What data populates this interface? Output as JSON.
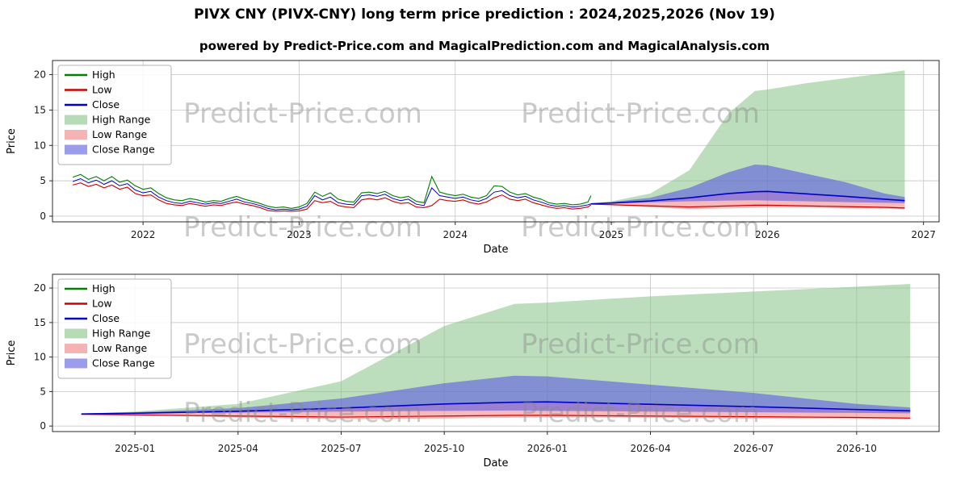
{
  "header": {
    "title": "PIVX CNY (PIVX-CNY) long term price prediction : 2024,2025,2026 (Nov 19)",
    "subtitle": "powered by Predict-Price.com and MagicalPrediction.com and MagicalAnalysis.com"
  },
  "watermark": "Predict-Price.com",
  "colors": {
    "high_line": "#007f00",
    "low_line": "#cc0000",
    "close_line": "#0000c8",
    "high_range": "#87c387",
    "low_range": "#f08080",
    "close_range": "#5a5ae0",
    "grid": "#cccccc",
    "spine": "#2b2b2b",
    "watermark": "#8a8a8a"
  },
  "legend": [
    {
      "label": "High",
      "type": "line",
      "color": "#007f00"
    },
    {
      "label": "Low",
      "type": "line",
      "color": "#cc0000"
    },
    {
      "label": "Close",
      "type": "line",
      "color": "#0000c8"
    },
    {
      "label": "High Range",
      "type": "patch",
      "color": "#87c387"
    },
    {
      "label": "Low Range",
      "type": "patch",
      "color": "#f08080"
    },
    {
      "label": "Close Range",
      "type": "patch",
      "color": "#5a5ae0"
    }
  ],
  "chart_data": [
    {
      "type": "line",
      "title": "PIVX CNY price history and prediction (full range)",
      "xlabel": "Date",
      "ylabel": "Price",
      "xlim": [
        2021.42,
        2027.1
      ],
      "ylim": [
        -0.8,
        22
      ],
      "yticks": [
        0,
        5,
        10,
        15,
        20
      ],
      "xticks": [
        {
          "v": 2022,
          "label": "2022"
        },
        {
          "v": 2023,
          "label": "2023"
        },
        {
          "v": 2024,
          "label": "2024"
        },
        {
          "v": 2025,
          "label": "2025"
        },
        {
          "v": 2026,
          "label": "2026"
        },
        {
          "v": 2027,
          "label": "2027"
        }
      ],
      "historical": {
        "x": [
          2021.55,
          2021.6,
          2021.65,
          2021.7,
          2021.75,
          2021.8,
          2021.85,
          2021.9,
          2021.95,
          2022.0,
          2022.05,
          2022.1,
          2022.15,
          2022.2,
          2022.25,
          2022.3,
          2022.35,
          2022.4,
          2022.45,
          2022.5,
          2022.55,
          2022.6,
          2022.65,
          2022.7,
          2022.75,
          2022.8,
          2022.85,
          2022.9,
          2022.95,
          2023.0,
          2023.05,
          2023.1,
          2023.15,
          2023.2,
          2023.25,
          2023.3,
          2023.35,
          2023.4,
          2023.45,
          2023.5,
          2023.55,
          2023.6,
          2023.65,
          2023.7,
          2023.75,
          2023.8,
          2023.85,
          2023.9,
          2023.95,
          2024.0,
          2024.05,
          2024.1,
          2024.15,
          2024.2,
          2024.25,
          2024.3,
          2024.35,
          2024.4,
          2024.45,
          2024.5,
          2024.55,
          2024.6,
          2024.65,
          2024.7,
          2024.75,
          2024.8,
          2024.85,
          2024.87
        ],
        "high": [
          5.5,
          5.9,
          5.2,
          5.6,
          5.0,
          5.6,
          4.8,
          5.1,
          4.3,
          3.8,
          4.0,
          3.2,
          2.6,
          2.3,
          2.2,
          2.5,
          2.3,
          2.0,
          2.2,
          2.1,
          2.5,
          2.8,
          2.4,
          2.1,
          1.8,
          1.4,
          1.2,
          1.3,
          1.1,
          1.3,
          1.8,
          3.4,
          2.8,
          3.3,
          2.4,
          2.1,
          2.0,
          3.3,
          3.4,
          3.2,
          3.5,
          2.9,
          2.6,
          2.8,
          2.1,
          1.9,
          5.6,
          3.4,
          3.1,
          2.9,
          3.1,
          2.7,
          2.5,
          2.9,
          4.3,
          4.2,
          3.4,
          3.0,
          3.2,
          2.7,
          2.4,
          1.9,
          1.7,
          1.8,
          1.6,
          1.7,
          2.0,
          2.9
        ],
        "low": [
          4.4,
          4.7,
          4.2,
          4.5,
          4.0,
          4.4,
          3.8,
          4.1,
          3.2,
          2.9,
          3.0,
          2.3,
          1.8,
          1.6,
          1.5,
          1.8,
          1.6,
          1.4,
          1.6,
          1.5,
          1.8,
          2.0,
          1.7,
          1.5,
          1.2,
          0.8,
          0.7,
          0.75,
          0.7,
          0.75,
          1.0,
          2.2,
          1.9,
          2.1,
          1.5,
          1.3,
          1.2,
          2.3,
          2.5,
          2.3,
          2.6,
          2.1,
          1.8,
          1.9,
          1.3,
          1.2,
          1.5,
          2.4,
          2.2,
          2.1,
          2.3,
          1.9,
          1.7,
          2.0,
          2.6,
          3.0,
          2.4,
          2.2,
          2.4,
          1.9,
          1.6,
          1.3,
          1.1,
          1.2,
          1.0,
          1.1,
          1.3,
          1.6
        ],
        "close": [
          4.9,
          5.3,
          4.7,
          5.1,
          4.5,
          5.0,
          4.3,
          4.6,
          3.7,
          3.3,
          3.5,
          2.7,
          2.2,
          1.9,
          1.8,
          2.1,
          1.9,
          1.7,
          1.9,
          1.8,
          2.1,
          2.4,
          2.0,
          1.8,
          1.5,
          1.1,
          0.9,
          1.0,
          0.9,
          1.0,
          1.4,
          2.9,
          2.3,
          2.7,
          1.9,
          1.7,
          1.6,
          2.9,
          3.0,
          2.8,
          3.1,
          2.5,
          2.2,
          2.4,
          1.7,
          1.5,
          4.0,
          2.9,
          2.7,
          2.5,
          2.7,
          2.3,
          2.1,
          2.5,
          3.4,
          3.6,
          2.9,
          2.6,
          2.8,
          2.3,
          2.0,
          1.6,
          1.4,
          1.5,
          1.3,
          1.4,
          1.6,
          1.75
        ],
        "close_end": 1.75
      },
      "prediction": {
        "x": [
          2024.87,
          2025.0,
          2025.25,
          2025.5,
          2025.75,
          2025.92,
          2026.0,
          2026.25,
          2026.5,
          2026.75,
          2026.88
        ],
        "high_top": [
          1.8,
          2.1,
          3.2,
          6.5,
          14.5,
          17.7,
          17.9,
          18.8,
          19.5,
          20.2,
          20.6
        ],
        "close_top": [
          1.8,
          2.0,
          2.6,
          4.0,
          6.2,
          7.3,
          7.2,
          6.0,
          4.8,
          3.2,
          2.7
        ],
        "close": [
          1.75,
          1.85,
          2.15,
          2.6,
          3.2,
          3.45,
          3.5,
          3.15,
          2.8,
          2.4,
          2.2
        ],
        "close_bottom": [
          1.72,
          1.78,
          1.95,
          2.1,
          2.2,
          2.25,
          2.2,
          2.1,
          2.0,
          1.9,
          1.85
        ],
        "low": [
          1.7,
          1.62,
          1.45,
          1.3,
          1.45,
          1.55,
          1.55,
          1.45,
          1.35,
          1.25,
          1.15
        ],
        "low_bottom": [
          1.68,
          1.55,
          1.25,
          1.0,
          1.1,
          1.2,
          1.25,
          1.2,
          1.1,
          1.05,
          1.0
        ]
      }
    },
    {
      "type": "line",
      "title": "PIVX CNY prediction detail 2025-2026",
      "xlabel": "Date",
      "ylabel": "Price",
      "xlim": [
        2024.8,
        2026.95
      ],
      "ylim": [
        -0.8,
        22
      ],
      "yticks": [
        0,
        5,
        10,
        15,
        20
      ],
      "xticks": [
        {
          "v": 2025.0,
          "label": "2025-01"
        },
        {
          "v": 2025.25,
          "label": "2025-04"
        },
        {
          "v": 2025.5,
          "label": "2025-07"
        },
        {
          "v": 2025.75,
          "label": "2025-10"
        },
        {
          "v": 2026.0,
          "label": "2026-01"
        },
        {
          "v": 2026.25,
          "label": "2026-04"
        },
        {
          "v": 2026.5,
          "label": "2026-07"
        },
        {
          "v": 2026.75,
          "label": "2026-10"
        }
      ],
      "prediction": {
        "x": [
          2024.87,
          2025.0,
          2025.25,
          2025.5,
          2025.75,
          2025.92,
          2026.0,
          2026.25,
          2026.5,
          2026.75,
          2026.88
        ],
        "high_top": [
          1.8,
          2.1,
          3.2,
          6.5,
          14.5,
          17.7,
          17.9,
          18.8,
          19.5,
          20.2,
          20.6
        ],
        "close_top": [
          1.8,
          2.0,
          2.6,
          4.0,
          6.2,
          7.3,
          7.2,
          6.0,
          4.8,
          3.2,
          2.7
        ],
        "close": [
          1.75,
          1.85,
          2.15,
          2.6,
          3.2,
          3.45,
          3.5,
          3.15,
          2.8,
          2.4,
          2.2
        ],
        "close_bottom": [
          1.72,
          1.78,
          1.95,
          2.1,
          2.2,
          2.25,
          2.2,
          2.1,
          2.0,
          1.9,
          1.85
        ],
        "low": [
          1.7,
          1.62,
          1.45,
          1.3,
          1.45,
          1.55,
          1.55,
          1.45,
          1.35,
          1.25,
          1.15
        ],
        "low_bottom": [
          1.68,
          1.55,
          1.25,
          1.0,
          1.1,
          1.2,
          1.25,
          1.2,
          1.1,
          1.05,
          1.0
        ]
      }
    }
  ]
}
